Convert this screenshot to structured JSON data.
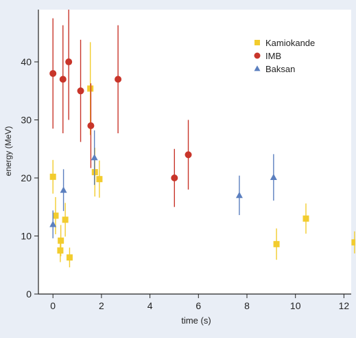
{
  "chart_data": {
    "type": "scatter",
    "xlabel": "time (s)",
    "ylabel": "energy (MeV)",
    "xlim": [
      -0.6,
      12.3
    ],
    "ylim": [
      0,
      49
    ],
    "xticks": [
      0,
      2,
      4,
      6,
      8,
      10,
      12
    ],
    "yticks": [
      0,
      10,
      20,
      30,
      40
    ],
    "legend_position": "top-right",
    "background_color": "#e9eef6",
    "series": [
      {
        "name": "Kamiokande",
        "marker": "square",
        "color": "#f2cc2e",
        "points": [
          {
            "x": 0.0,
            "y": 20.2,
            "err": 2.9
          },
          {
            "x": 0.107,
            "y": 13.5,
            "err": 3.2
          },
          {
            "x": 0.303,
            "y": 7.5,
            "err": 2.0
          },
          {
            "x": 0.324,
            "y": 9.2,
            "err": 2.7
          },
          {
            "x": 0.507,
            "y": 12.8,
            "err": 2.9
          },
          {
            "x": 0.686,
            "y": 6.3,
            "err": 1.7
          },
          {
            "x": 1.541,
            "y": 35.4,
            "err": 8.0
          },
          {
            "x": 1.728,
            "y": 21.0,
            "err": 4.2
          },
          {
            "x": 1.915,
            "y": 19.8,
            "err": 3.2
          },
          {
            "x": 9.219,
            "y": 8.6,
            "err": 2.7
          },
          {
            "x": 10.433,
            "y": 13.0,
            "err": 2.6
          },
          {
            "x": 12.439,
            "y": 8.9,
            "err": 1.9
          }
        ]
      },
      {
        "name": "IMB",
        "marker": "circle",
        "color": "#c8352a",
        "points": [
          {
            "x": 0.0,
            "y": 38.0,
            "err": 9.5
          },
          {
            "x": 0.412,
            "y": 37.0,
            "err": 9.3
          },
          {
            "x": 0.65,
            "y": 40.0,
            "err": 10.0
          },
          {
            "x": 1.141,
            "y": 35.0,
            "err": 8.8
          },
          {
            "x": 1.562,
            "y": 29.0,
            "err": 7.3
          },
          {
            "x": 2.684,
            "y": 37.0,
            "err": 9.3
          },
          {
            "x": 5.01,
            "y": 20.0,
            "err": 5.0
          },
          {
            "x": 5.582,
            "y": 24.0,
            "err": 6.0
          }
        ]
      },
      {
        "name": "Baksan",
        "marker": "triangle",
        "color": "#5b7fbf",
        "points": [
          {
            "x": 0.0,
            "y": 12.0,
            "err": 2.4
          },
          {
            "x": 0.435,
            "y": 17.9,
            "err": 3.6
          },
          {
            "x": 1.71,
            "y": 23.5,
            "err": 4.7
          },
          {
            "x": 7.687,
            "y": 17.0,
            "err": 3.4
          },
          {
            "x": 9.099,
            "y": 20.1,
            "err": 4.0
          }
        ]
      }
    ]
  }
}
